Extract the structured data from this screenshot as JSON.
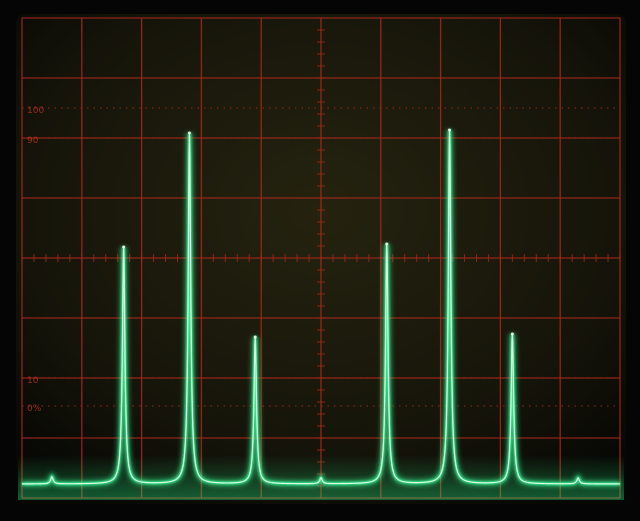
{
  "screen": {
    "background": "#050505",
    "panel_color": "#1a1a0e",
    "grid_color": "#a8281a",
    "trace_color": "#3dff9a",
    "labels": {
      "pct100": "100",
      "pct90": "90",
      "pct10": "10",
      "pct0": "0%"
    }
  },
  "chart_data": {
    "type": "line",
    "title": "",
    "xlabel": "",
    "ylabel": "",
    "grid": true,
    "x_divisions": 10,
    "y_divisions": 8,
    "ylim": [
      0,
      8
    ],
    "baseline_divisions": 0.1,
    "peaks": [
      {
        "x_div": 1.7,
        "height_div": 3.95
      },
      {
        "x_div": 2.8,
        "height_div": 5.85
      },
      {
        "x_div": 3.9,
        "height_div": 2.45
      },
      {
        "x_div": 6.1,
        "height_div": 4.0
      },
      {
        "x_div": 7.15,
        "height_div": 5.9
      },
      {
        "x_div": 8.2,
        "height_div": 2.5
      }
    ],
    "minor_peaks": [
      {
        "x_div": 0.5,
        "height_div": 0.12
      },
      {
        "x_div": 5.0,
        "height_div": 0.1
      },
      {
        "x_div": 9.3,
        "height_div": 0.1
      }
    ]
  }
}
